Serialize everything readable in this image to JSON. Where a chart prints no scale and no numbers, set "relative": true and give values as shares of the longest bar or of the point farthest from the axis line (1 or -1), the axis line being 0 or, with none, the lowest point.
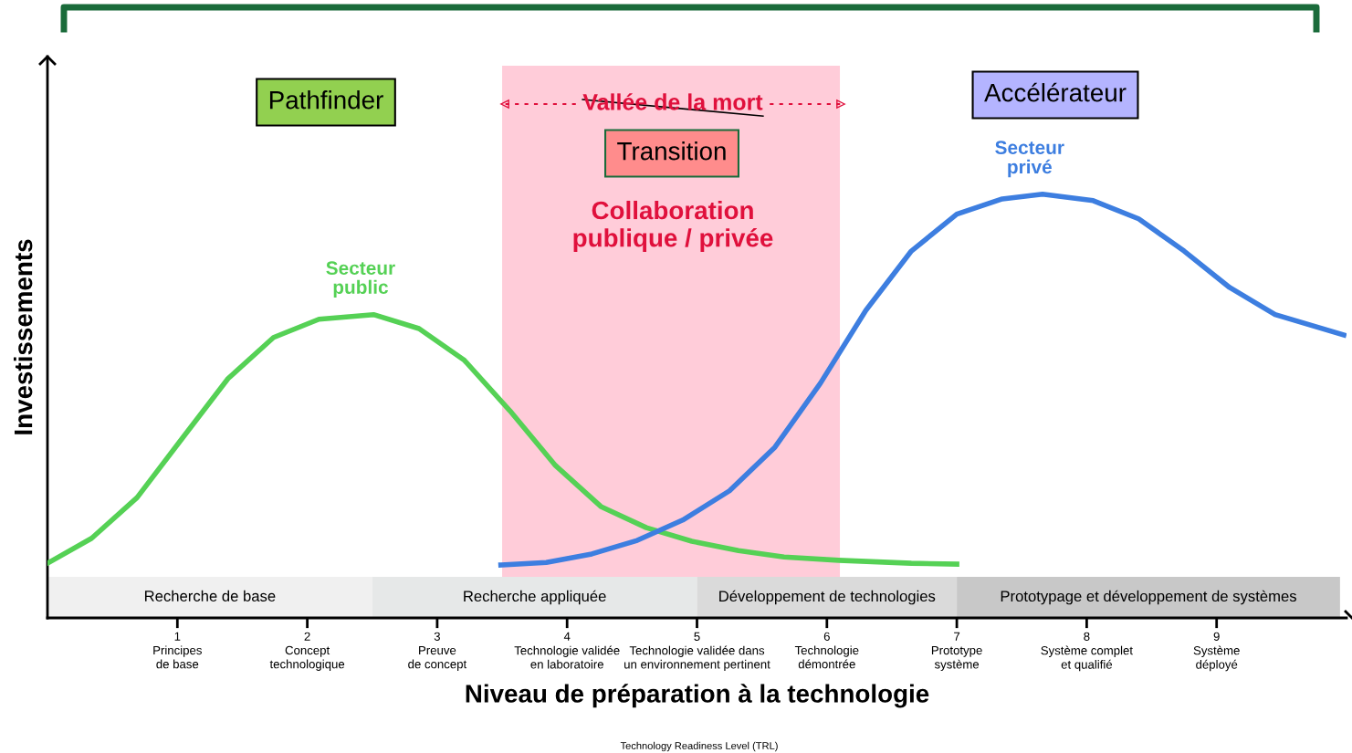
{
  "chart_data": {
    "type": "line",
    "relative": true,
    "ylabel": "Investissements",
    "xlabel": "Niveau de préparation à la technologie",
    "xlim": [
      0,
      10
    ],
    "xticks": [
      {
        "value": 1,
        "label": "1\nPrincipes\nde base"
      },
      {
        "value": 2,
        "label": "2\nConcept\ntechnologique"
      },
      {
        "value": 3,
        "label": "3\nPreuve\nde concept"
      },
      {
        "value": 4,
        "label": "4\nTechnologie validée\nen laboratoire"
      },
      {
        "value": 5,
        "label": "5\nTechnologie validée dans\nun environnement pertinent"
      },
      {
        "value": 6,
        "label": "6\nTechnologie\ndémontrée"
      },
      {
        "value": 7,
        "label": "7\nPrototype\nsystème"
      },
      {
        "value": 8,
        "label": "8\nSystème complet\net qualifié"
      },
      {
        "value": 9,
        "label": "9\nSystème\ndéployé"
      }
    ],
    "tick_labels": "x",
    "grid": false,
    "legend": false,
    "marker": "none",
    "line_style": "solid",
    "series": [
      {
        "name": "Secteur public",
        "color": "#55d155",
        "x": [
          0,
          0.34,
          0.69,
          1.04,
          1.39,
          1.74,
          2.09,
          2.51,
          2.86,
          3.21,
          3.56,
          3.91,
          4.26,
          4.61,
          4.96,
          5.32,
          5.67,
          6.09,
          6.65,
          7.0
        ],
        "values": [
          0.129,
          0.188,
          0.284,
          0.425,
          0.565,
          0.662,
          0.705,
          0.716,
          0.683,
          0.608,
          0.489,
          0.36,
          0.263,
          0.213,
          0.181,
          0.159,
          0.144,
          0.136,
          0.129,
          0.127
        ]
      },
      {
        "name": "Secteur privé",
        "color": "#3d7ee0",
        "x": [
          3.49,
          3.84,
          4.19,
          4.54,
          4.89,
          5.25,
          5.6,
          5.95,
          6.3,
          6.65,
          7.0,
          7.35,
          7.66,
          8.05,
          8.4,
          8.75,
          9.1,
          9.45,
          9.98
        ],
        "values": [
          0.125,
          0.131,
          0.151,
          0.183,
          0.231,
          0.3,
          0.403,
          0.554,
          0.726,
          0.866,
          0.953,
          0.989,
          1.0,
          0.985,
          0.942,
          0.866,
          0.78,
          0.716,
          0.668
        ]
      }
    ],
    "bands": [
      {
        "axis": "x",
        "from": 3.5,
        "to": 6.1,
        "color": "#ffccd9"
      },
      {
        "axis": "x",
        "from": 0,
        "to": 2.5,
        "label": "Recherche de base",
        "color": "#f0f0f0"
      },
      {
        "axis": "x",
        "from": 2.5,
        "to": 5,
        "label": "Recherche appliquée",
        "color": "#e6e8e8"
      },
      {
        "axis": "x",
        "from": 5,
        "to": 7,
        "label": "Développement de technologies",
        "color": "#dadada"
      },
      {
        "axis": "x",
        "from": 7,
        "to": 9.95,
        "label": "Prototypage et développement de systèmes",
        "color": "#c8c8c8"
      }
    ],
    "annotations": [
      "Pathfinder",
      "Vallée de la mort",
      "Transition",
      "Collaboration publique / privée",
      "Accélérateur",
      "Technology Readiness Level (TRL)"
    ]
  }
}
